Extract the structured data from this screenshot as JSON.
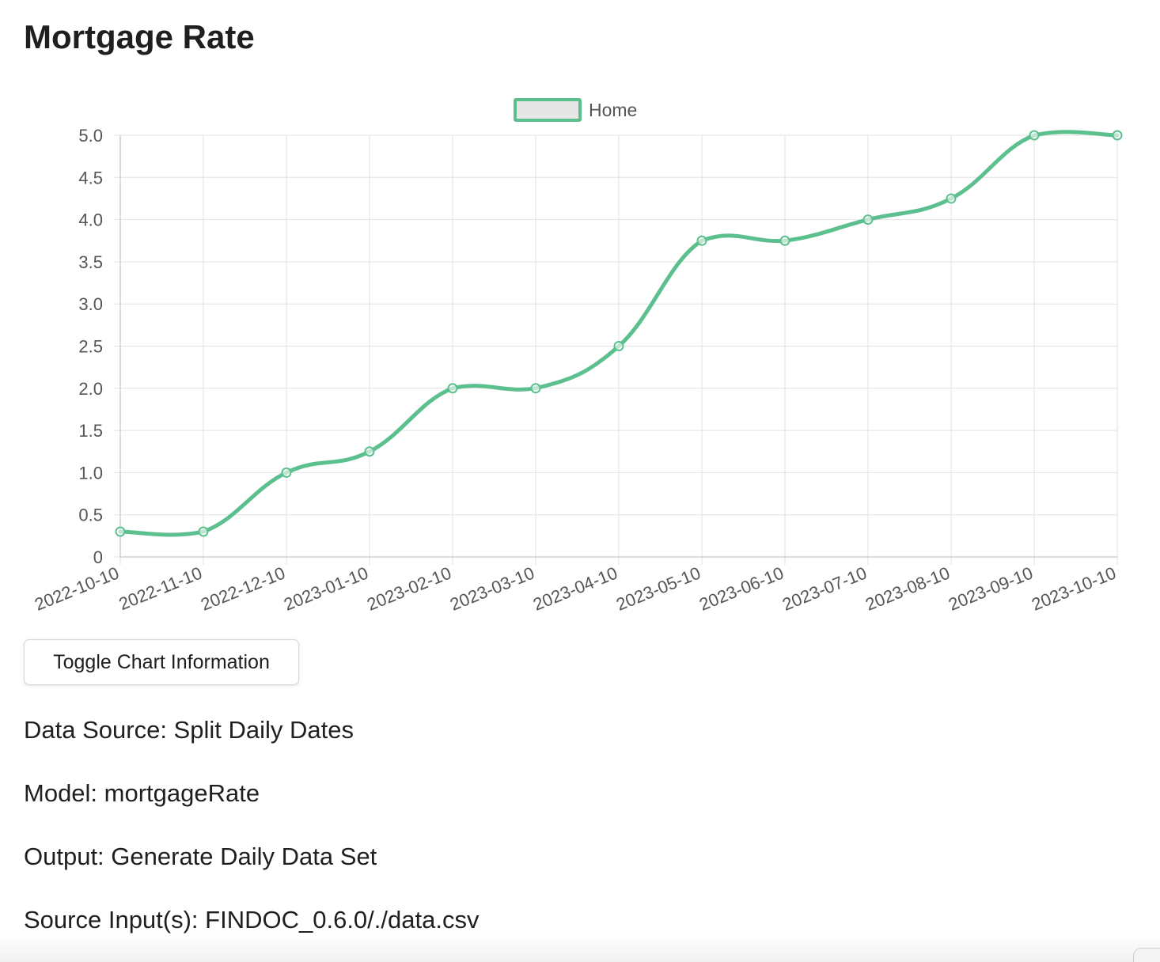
{
  "page": {
    "title": "Mortgage Rate"
  },
  "toggle": {
    "label": "Toggle Chart Information"
  },
  "info": {
    "data_source": "Data Source: Split Daily Dates",
    "model": "Model: mortgageRate",
    "output": "Output: Generate Daily Data Set",
    "source_inputs": "Source Input(s): FINDOC_0.6.0/./data.csv"
  },
  "colors": {
    "series_line": "#5cbf8e",
    "legend_fill": "#e6e6e6",
    "grid": "#e2e2e2",
    "tick_text": "#555555"
  },
  "chart_data": {
    "type": "line",
    "title": "",
    "xlabel": "",
    "ylabel": "",
    "categories": [
      "2022-10-10",
      "2022-11-10",
      "2022-12-10",
      "2023-01-10",
      "2023-02-10",
      "2023-03-10",
      "2023-04-10",
      "2023-05-10",
      "2023-06-10",
      "2023-07-10",
      "2023-08-10",
      "2023-09-10",
      "2023-10-10"
    ],
    "series": [
      {
        "name": "Home",
        "values": [
          0.3,
          0.3,
          1.0,
          1.25,
          2.0,
          2.0,
          2.5,
          3.75,
          3.75,
          4.0,
          4.25,
          5.0,
          5.0
        ]
      }
    ],
    "ylim": [
      0,
      5
    ],
    "y_ticks": [
      "0",
      "0.5",
      "1.0",
      "1.5",
      "2.0",
      "2.5",
      "3.0",
      "3.5",
      "4.0",
      "4.5",
      "5.0"
    ],
    "y_tick_values": [
      0,
      0.5,
      1.0,
      1.5,
      2.0,
      2.5,
      3.0,
      3.5,
      4.0,
      4.5,
      5.0
    ],
    "grid": true,
    "legend_position": "top-center",
    "smooth_lines": true
  }
}
